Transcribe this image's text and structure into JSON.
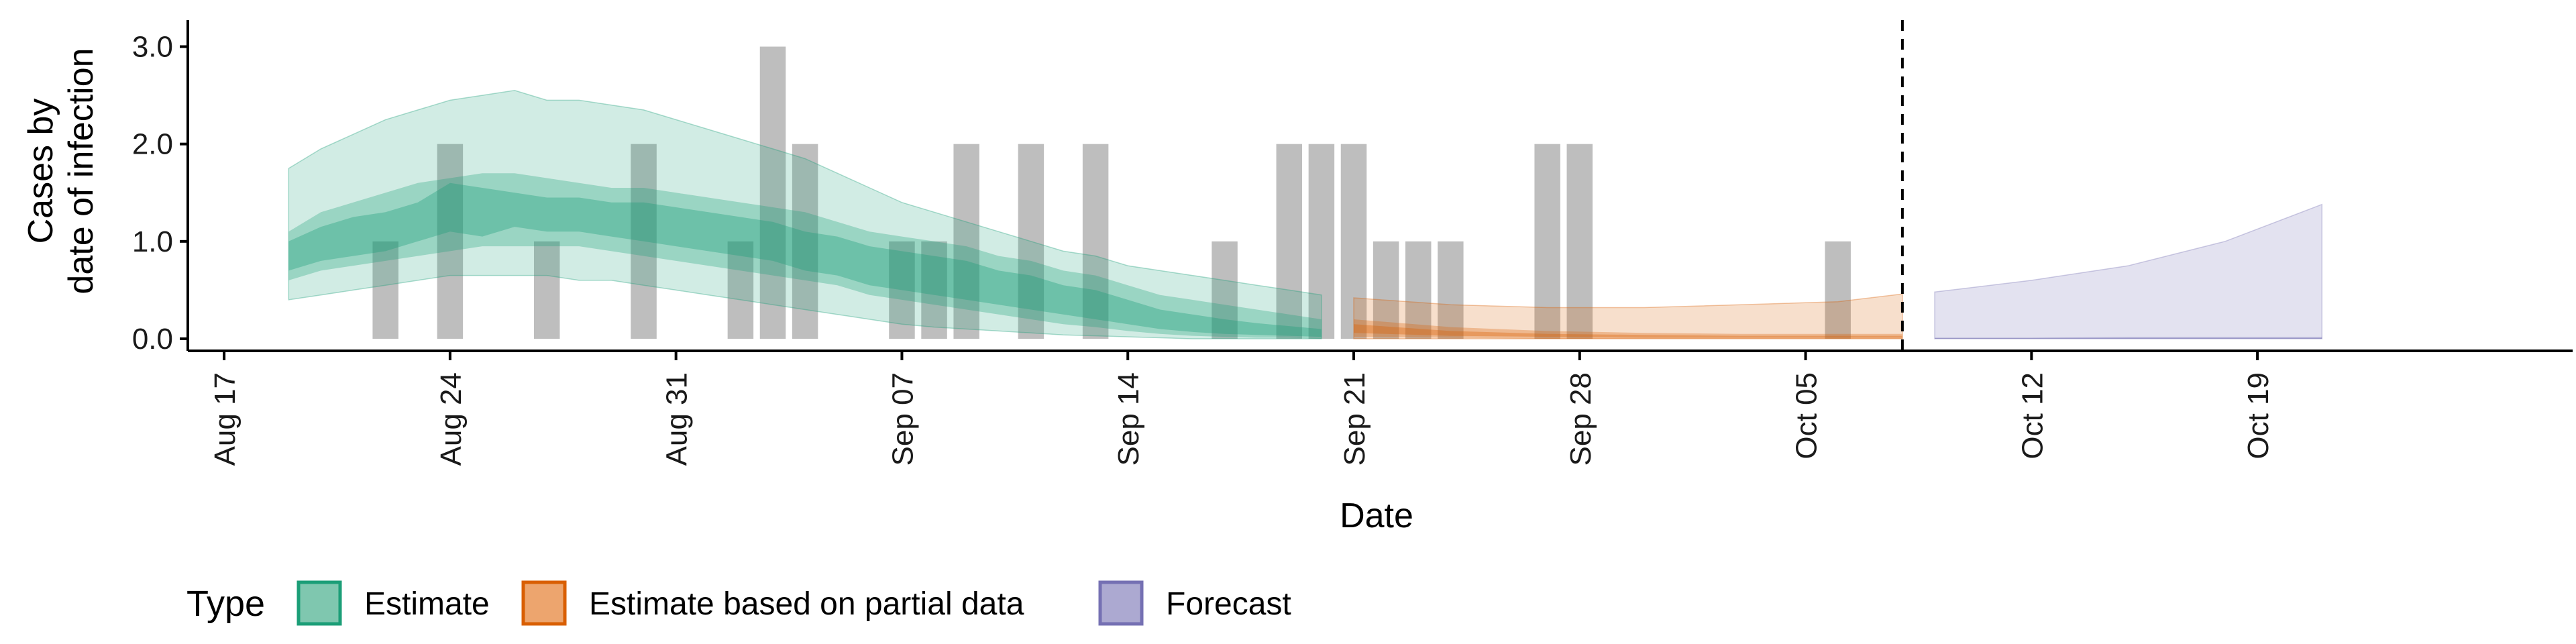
{
  "chart_data": {
    "type": "area",
    "xlabel": "Date",
    "ylabel": [
      "Cases by",
      "date of infection"
    ],
    "ylim": [
      0,
      3.1
    ],
    "xlim": [
      "2020-08-16",
      "2020-10-27"
    ],
    "y_ticks": [
      0,
      1,
      2,
      3
    ],
    "y_tick_labels": [
      "0.0",
      "1.0",
      "2.0",
      "3.0"
    ],
    "x_ticks": [
      "2020-08-17",
      "2020-08-24",
      "2020-08-31",
      "2020-09-07",
      "2020-09-14",
      "2020-09-21",
      "2020-09-28",
      "2020-10-05",
      "2020-10-12",
      "2020-10-19"
    ],
    "x_tick_labels": [
      "Aug 17",
      "Aug 24",
      "Aug 31",
      "Sep 07",
      "Sep 14",
      "Sep 21",
      "Sep 28",
      "Oct 05",
      "Oct 12",
      "Oct 19"
    ],
    "grid": false,
    "forecast_line_date": "2020-10-08",
    "reported_cases": {
      "dates": [
        "2020-08-22",
        "2020-08-24",
        "2020-08-27",
        "2020-08-30",
        "2020-09-02",
        "2020-09-03",
        "2020-09-04",
        "2020-09-07",
        "2020-09-08",
        "2020-09-09",
        "2020-09-11",
        "2020-09-13",
        "2020-09-17",
        "2020-09-19",
        "2020-09-20",
        "2020-09-21",
        "2020-09-22",
        "2020-09-23",
        "2020-09-24",
        "2020-09-27",
        "2020-09-28",
        "2020-10-06"
      ],
      "values": [
        1,
        2,
        1,
        2,
        1,
        3,
        2,
        1,
        1,
        2,
        2,
        2,
        1,
        2,
        2,
        2,
        1,
        1,
        1,
        2,
        2,
        1
      ],
      "color": "#bebebe"
    },
    "series": [
      {
        "name": "Estimate",
        "color": "#1b9e77",
        "dates": [
          "2020-08-19",
          "2020-08-20",
          "2020-08-21",
          "2020-08-22",
          "2020-08-23",
          "2020-08-24",
          "2020-08-25",
          "2020-08-26",
          "2020-08-27",
          "2020-08-28",
          "2020-08-29",
          "2020-08-30",
          "2020-08-31",
          "2020-09-01",
          "2020-09-02",
          "2020-09-03",
          "2020-09-04",
          "2020-09-05",
          "2020-09-06",
          "2020-09-07",
          "2020-09-08",
          "2020-09-09",
          "2020-09-10",
          "2020-09-11",
          "2020-09-12",
          "2020-09-13",
          "2020-09-14",
          "2020-09-15",
          "2020-09-16",
          "2020-09-17",
          "2020-09-18",
          "2020-09-19",
          "2020-09-20"
        ],
        "median": [
          0.85,
          1.0,
          1.05,
          1.1,
          1.2,
          1.3,
          1.3,
          1.3,
          1.3,
          1.3,
          1.2,
          1.2,
          1.15,
          1.1,
          1.05,
          1.0,
          0.9,
          0.85,
          0.75,
          0.7,
          0.65,
          0.6,
          0.5,
          0.45,
          0.4,
          0.35,
          0.25,
          0.2,
          0.15,
          0.12,
          0.1,
          0.08,
          0.06
        ],
        "inner_low": [
          0.7,
          0.8,
          0.85,
          0.9,
          1.0,
          1.1,
          1.05,
          1.15,
          1.1,
          1.1,
          1.05,
          1.0,
          0.95,
          0.9,
          0.85,
          0.8,
          0.7,
          0.65,
          0.55,
          0.5,
          0.45,
          0.4,
          0.35,
          0.3,
          0.25,
          0.2,
          0.15,
          0.1,
          0.07,
          0.05,
          0.04,
          0.03,
          0.02
        ],
        "inner_high": [
          1.0,
          1.15,
          1.25,
          1.3,
          1.4,
          1.6,
          1.55,
          1.5,
          1.45,
          1.45,
          1.4,
          1.4,
          1.35,
          1.3,
          1.25,
          1.2,
          1.1,
          1.05,
          0.95,
          0.9,
          0.85,
          0.8,
          0.7,
          0.65,
          0.55,
          0.5,
          0.4,
          0.3,
          0.25,
          0.2,
          0.16,
          0.13,
          0.1
        ],
        "mid_low": [
          0.6,
          0.7,
          0.75,
          0.8,
          0.85,
          0.9,
          0.95,
          0.95,
          0.95,
          0.95,
          0.9,
          0.85,
          0.8,
          0.75,
          0.7,
          0.65,
          0.6,
          0.55,
          0.45,
          0.4,
          0.35,
          0.3,
          0.25,
          0.2,
          0.15,
          0.12,
          0.08,
          0.05,
          0.03,
          0.02,
          0.01,
          0.01,
          0.0
        ],
        "mid_high": [
          1.1,
          1.3,
          1.4,
          1.5,
          1.6,
          1.65,
          1.7,
          1.7,
          1.65,
          1.6,
          1.55,
          1.55,
          1.5,
          1.45,
          1.4,
          1.35,
          1.3,
          1.2,
          1.1,
          1.05,
          1.0,
          0.95,
          0.85,
          0.8,
          0.7,
          0.65,
          0.55,
          0.45,
          0.4,
          0.35,
          0.3,
          0.25,
          0.2
        ],
        "outer_low": [
          0.4,
          0.45,
          0.5,
          0.55,
          0.6,
          0.65,
          0.65,
          0.65,
          0.65,
          0.6,
          0.6,
          0.55,
          0.5,
          0.45,
          0.4,
          0.35,
          0.3,
          0.25,
          0.2,
          0.15,
          0.12,
          0.1,
          0.08,
          0.06,
          0.04,
          0.03,
          0.02,
          0.01,
          0.0,
          0.0,
          0.0,
          0.0,
          0.0
        ],
        "outer_high": [
          1.75,
          1.95,
          2.1,
          2.25,
          2.35,
          2.45,
          2.5,
          2.55,
          2.45,
          2.45,
          2.4,
          2.35,
          2.25,
          2.15,
          2.05,
          1.95,
          1.85,
          1.7,
          1.55,
          1.4,
          1.3,
          1.2,
          1.1,
          1.0,
          0.9,
          0.85,
          0.75,
          0.7,
          0.65,
          0.6,
          0.55,
          0.5,
          0.45
        ]
      },
      {
        "name": "Estimate based on partial data",
        "color": "#d95f02",
        "dates": [
          "2020-09-21",
          "2020-09-24",
          "2020-09-27",
          "2020-09-30",
          "2020-10-03",
          "2020-10-06",
          "2020-10-08"
        ],
        "median": [
          0.1,
          0.05,
          0.03,
          0.02,
          0.02,
          0.02,
          0.02
        ],
        "inner_low": [
          0.06,
          0.03,
          0.02,
          0.01,
          0.01,
          0.01,
          0.01
        ],
        "inner_high": [
          0.15,
          0.08,
          0.05,
          0.04,
          0.03,
          0.03,
          0.03
        ],
        "mid_low": [
          0.02,
          0.01,
          0.0,
          0.0,
          0.0,
          0.0,
          0.0
        ],
        "mid_high": [
          0.2,
          0.12,
          0.08,
          0.06,
          0.05,
          0.05,
          0.05
        ],
        "outer_low": [
          0.0,
          0.0,
          0.0,
          0.0,
          0.0,
          0.0,
          0.0
        ],
        "outer_high": [
          0.42,
          0.35,
          0.32,
          0.32,
          0.35,
          0.38,
          0.46
        ]
      },
      {
        "name": "Forecast",
        "color": "#7570b3",
        "dates": [
          "2020-10-09",
          "2020-10-12",
          "2020-10-15",
          "2020-10-18",
          "2020-10-21"
        ],
        "median": [
          0.0,
          0.0,
          0.0,
          0.0,
          0.0
        ],
        "inner_low": [
          0.0,
          0.0,
          0.0,
          0.0,
          0.0
        ],
        "inner_high": [
          0.01,
          0.01,
          0.01,
          0.01,
          0.01
        ],
        "mid_low": [
          0.0,
          0.0,
          0.0,
          0.0,
          0.0
        ],
        "mid_high": [
          0.01,
          0.01,
          0.02,
          0.02,
          0.02
        ],
        "outer_low": [
          0.0,
          0.0,
          0.0,
          0.0,
          0.0
        ],
        "outer_high": [
          0.48,
          0.6,
          0.75,
          1.0,
          1.38
        ]
      }
    ],
    "legend": {
      "title": "Type",
      "position": "bottom",
      "entries": [
        {
          "label": "Estimate",
          "fill": "#7fc7af",
          "stroke": "#1b9e77"
        },
        {
          "label": "Estimate based on partial data",
          "fill": "#eda56e",
          "stroke": "#d95f02"
        },
        {
          "label": "Forecast",
          "fill": "#aca9d1",
          "stroke": "#7570b3"
        }
      ]
    }
  }
}
